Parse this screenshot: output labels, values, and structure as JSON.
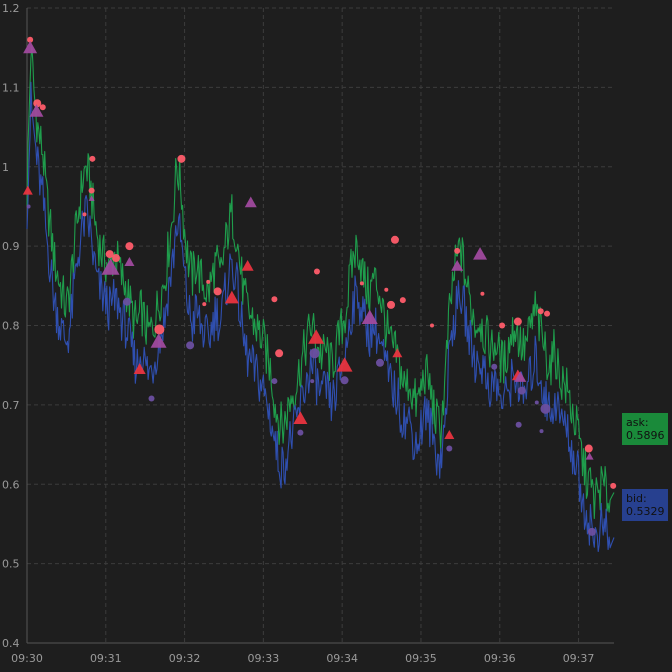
{
  "chart_data": {
    "type": "line",
    "title": "",
    "xlabel": "",
    "ylabel": "",
    "ylim": [
      0.4,
      1.2
    ],
    "xlim": [
      "09:30",
      "09:37:27"
    ],
    "grid": true,
    "legend": "none",
    "colors": {
      "background": "#1e1e1e",
      "grid": "#3c3c3c",
      "ask": "#1f9d4c",
      "bid": "#2f4fb0",
      "ask_badge": "#1a8a3a",
      "bid_badge": "#27408f",
      "sell_marker": "#ff5c6a",
      "buy_marker": "#6b4fa0",
      "triangle_red": "#e8343f",
      "triangle_purple": "#a04a9e"
    },
    "y_ticks": [
      "0.4",
      "0.5",
      "0.6",
      "0.7",
      "0.8",
      "0.9",
      "1",
      "1.1",
      "1.2"
    ],
    "x_ticks": [
      "09:30",
      "09:31",
      "09:32",
      "09:33",
      "09:34",
      "09:35",
      "09:36",
      "09:37"
    ],
    "series": [
      {
        "name": "ask",
        "color": "#1f9d4c",
        "x": [
          0,
          0.05,
          0.1,
          0.15,
          0.2,
          0.25,
          0.3,
          0.35,
          0.4,
          0.45,
          0.5,
          0.55,
          0.6,
          0.65,
          0.7,
          0.75,
          0.8,
          0.85,
          0.9,
          0.95,
          1,
          1.05,
          1.1,
          1.15,
          1.2,
          1.25,
          1.3,
          1.35,
          1.4,
          1.45,
          1.5,
          1.55,
          1.6,
          1.65,
          1.7,
          1.75,
          1.8,
          1.85,
          1.9,
          1.95,
          2,
          2.05,
          2.1,
          2.15,
          2.2,
          2.25,
          2.3,
          2.35,
          2.4,
          2.45,
          2.5,
          2.55,
          2.6,
          2.65,
          2.7,
          2.75,
          2.8,
          2.85,
          2.9,
          2.95,
          3,
          3.05,
          3.1,
          3.15,
          3.2,
          3.25,
          3.3,
          3.35,
          3.4,
          3.45,
          3.5,
          3.55,
          3.6,
          3.65,
          3.7,
          3.75,
          3.8,
          3.85,
          3.9,
          3.95,
          4,
          4.05,
          4.1,
          4.15,
          4.2,
          4.25,
          4.3,
          4.35,
          4.4,
          4.45,
          4.5,
          4.55,
          4.6,
          4.65,
          4.7,
          4.75,
          4.8,
          4.85,
          4.9,
          4.95,
          5,
          5.05,
          5.1,
          5.15,
          5.2,
          5.25,
          5.3,
          5.35,
          5.4,
          5.45,
          5.5,
          5.55,
          5.6,
          5.65,
          5.7,
          5.75,
          5.8,
          5.85,
          5.9,
          5.95,
          6,
          6.05,
          6.1,
          6.15,
          6.2,
          6.25,
          6.3,
          6.35,
          6.4,
          6.45,
          6.5,
          6.55,
          6.6,
          6.65,
          6.7,
          6.75,
          6.8,
          6.85,
          6.9,
          6.95,
          7,
          7.05,
          7.1,
          7.15,
          7.2,
          7.25,
          7.3,
          7.35,
          7.4,
          7.45
        ],
        "values": [
          0.97,
          1.15,
          1.08,
          1.04,
          1.02,
          0.96,
          0.92,
          0.88,
          0.86,
          0.84,
          0.82,
          0.85,
          0.9,
          0.94,
          0.98,
          1.0,
          0.98,
          0.94,
          0.91,
          0.89,
          0.88,
          0.87,
          0.89,
          0.88,
          0.86,
          0.85,
          0.83,
          0.81,
          0.8,
          0.82,
          0.8,
          0.79,
          0.8,
          0.82,
          0.84,
          0.86,
          0.9,
          0.94,
          1.0,
          0.98,
          0.92,
          0.88,
          0.86,
          0.88,
          0.86,
          0.85,
          0.84,
          0.86,
          0.88,
          0.86,
          0.89,
          0.92,
          0.94,
          0.92,
          0.88,
          0.84,
          0.82,
          0.81,
          0.8,
          0.79,
          0.78,
          0.76,
          0.74,
          0.7,
          0.68,
          0.67,
          0.69,
          0.71,
          0.72,
          0.74,
          0.76,
          0.78,
          0.8,
          0.79,
          0.77,
          0.76,
          0.77,
          0.75,
          0.76,
          0.78,
          0.8,
          0.82,
          0.86,
          0.89,
          0.9,
          0.87,
          0.85,
          0.84,
          0.86,
          0.85,
          0.83,
          0.8,
          0.78,
          0.77,
          0.76,
          0.74,
          0.72,
          0.73,
          0.71,
          0.7,
          0.72,
          0.74,
          0.73,
          0.7,
          0.68,
          0.67,
          0.72,
          0.8,
          0.85,
          0.88,
          0.9,
          0.87,
          0.84,
          0.82,
          0.8,
          0.81,
          0.79,
          0.78,
          0.77,
          0.78,
          0.76,
          0.75,
          0.77,
          0.79,
          0.8,
          0.78,
          0.77,
          0.78,
          0.8,
          0.82,
          0.8,
          0.78,
          0.76,
          0.75,
          0.77,
          0.74,
          0.73,
          0.72,
          0.7,
          0.68,
          0.66,
          0.63,
          0.61,
          0.6,
          0.58,
          0.59,
          0.6,
          0.59,
          0.58,
          0.5896
        ]
      },
      {
        "name": "bid",
        "color": "#2f4fb0",
        "x": [
          0,
          0.05,
          0.1,
          0.15,
          0.2,
          0.25,
          0.3,
          0.35,
          0.4,
          0.45,
          0.5,
          0.55,
          0.6,
          0.65,
          0.7,
          0.75,
          0.8,
          0.85,
          0.9,
          0.95,
          1,
          1.05,
          1.1,
          1.15,
          1.2,
          1.25,
          1.3,
          1.35,
          1.4,
          1.45,
          1.5,
          1.55,
          1.6,
          1.65,
          1.7,
          1.75,
          1.8,
          1.85,
          1.9,
          1.95,
          2,
          2.05,
          2.1,
          2.15,
          2.2,
          2.25,
          2.3,
          2.35,
          2.4,
          2.45,
          2.5,
          2.55,
          2.6,
          2.65,
          2.7,
          2.75,
          2.8,
          2.85,
          2.9,
          2.95,
          3,
          3.05,
          3.1,
          3.15,
          3.2,
          3.25,
          3.3,
          3.35,
          3.4,
          3.45,
          3.5,
          3.55,
          3.6,
          3.65,
          3.7,
          3.75,
          3.8,
          3.85,
          3.9,
          3.95,
          4,
          4.05,
          4.1,
          4.15,
          4.2,
          4.25,
          4.3,
          4.35,
          4.4,
          4.45,
          4.5,
          4.55,
          4.6,
          4.65,
          4.7,
          4.75,
          4.8,
          4.85,
          4.9,
          4.95,
          5,
          5.05,
          5.1,
          5.15,
          5.2,
          5.25,
          5.3,
          5.35,
          5.4,
          5.45,
          5.5,
          5.55,
          5.6,
          5.65,
          5.7,
          5.75,
          5.8,
          5.85,
          5.9,
          5.95,
          6,
          6.05,
          6.1,
          6.15,
          6.2,
          6.25,
          6.3,
          6.35,
          6.4,
          6.45,
          6.5,
          6.55,
          6.6,
          6.65,
          6.7,
          6.75,
          6.8,
          6.85,
          6.9,
          6.95,
          7,
          7.05,
          7.1,
          7.15,
          7.2,
          7.25,
          7.3,
          7.35,
          7.4,
          7.45
        ],
        "values": [
          0.95,
          1.08,
          1.03,
          0.99,
          0.96,
          0.91,
          0.87,
          0.83,
          0.81,
          0.79,
          0.78,
          0.8,
          0.85,
          0.89,
          0.92,
          0.94,
          0.92,
          0.88,
          0.85,
          0.84,
          0.83,
          0.82,
          0.83,
          0.83,
          0.81,
          0.8,
          0.78,
          0.76,
          0.75,
          0.77,
          0.75,
          0.74,
          0.75,
          0.77,
          0.79,
          0.81,
          0.85,
          0.88,
          0.93,
          0.91,
          0.86,
          0.82,
          0.8,
          0.82,
          0.8,
          0.79,
          0.78,
          0.8,
          0.82,
          0.8,
          0.83,
          0.86,
          0.88,
          0.86,
          0.82,
          0.78,
          0.76,
          0.75,
          0.74,
          0.73,
          0.72,
          0.7,
          0.68,
          0.65,
          0.63,
          0.62,
          0.64,
          0.66,
          0.67,
          0.69,
          0.71,
          0.73,
          0.75,
          0.74,
          0.72,
          0.71,
          0.72,
          0.7,
          0.71,
          0.73,
          0.75,
          0.77,
          0.81,
          0.83,
          0.84,
          0.82,
          0.8,
          0.79,
          0.8,
          0.79,
          0.77,
          0.75,
          0.73,
          0.72,
          0.71,
          0.69,
          0.68,
          0.68,
          0.66,
          0.65,
          0.67,
          0.69,
          0.68,
          0.66,
          0.64,
          0.63,
          0.67,
          0.75,
          0.8,
          0.82,
          0.84,
          0.82,
          0.79,
          0.77,
          0.75,
          0.76,
          0.74,
          0.73,
          0.72,
          0.73,
          0.71,
          0.7,
          0.72,
          0.73,
          0.74,
          0.72,
          0.71,
          0.72,
          0.74,
          0.76,
          0.74,
          0.72,
          0.7,
          0.69,
          0.71,
          0.69,
          0.68,
          0.67,
          0.65,
          0.63,
          0.61,
          0.58,
          0.56,
          0.55,
          0.53,
          0.54,
          0.55,
          0.54,
          0.52,
          0.5329
        ]
      }
    ],
    "markers": [
      {
        "shape": "circle",
        "color": "#ff5c6a",
        "x": 0.04,
        "y": 1.16,
        "size": 3
      },
      {
        "shape": "circle",
        "color": "#ff5c6a",
        "x": 0.13,
        "y": 1.08,
        "size": 4
      },
      {
        "shape": "circle",
        "color": "#ff5c6a",
        "x": 0.2,
        "y": 1.075,
        "size": 3
      },
      {
        "shape": "circle",
        "color": "#ff5c6a",
        "x": 0.73,
        "y": 0.94,
        "size": 2
      },
      {
        "shape": "circle",
        "color": "#ff5c6a",
        "x": 0.83,
        "y": 1.01,
        "size": 3
      },
      {
        "shape": "circle",
        "color": "#ff5c6a",
        "x": 0.82,
        "y": 0.97,
        "size": 3
      },
      {
        "shape": "circle",
        "color": "#ff5c6a",
        "x": 1.05,
        "y": 0.89,
        "size": 4
      },
      {
        "shape": "circle",
        "color": "#ff5c6a",
        "x": 1.13,
        "y": 0.885,
        "size": 4
      },
      {
        "shape": "circle",
        "color": "#ff5c6a",
        "x": 1.3,
        "y": 0.9,
        "size": 4
      },
      {
        "shape": "circle",
        "color": "#ff5c6a",
        "x": 1.68,
        "y": 0.795,
        "size": 5
      },
      {
        "shape": "circle",
        "color": "#ff5c6a",
        "x": 1.96,
        "y": 1.01,
        "size": 4
      },
      {
        "shape": "circle",
        "color": "#ff5c6a",
        "x": 2.3,
        "y": 0.855,
        "size": 2
      },
      {
        "shape": "circle",
        "color": "#ff5c6a",
        "x": 2.42,
        "y": 0.843,
        "size": 4
      },
      {
        "shape": "circle",
        "color": "#ff5c6a",
        "x": 2.25,
        "y": 0.827,
        "size": 2
      },
      {
        "shape": "circle",
        "color": "#ff5c6a",
        "x": 3.14,
        "y": 0.833,
        "size": 3
      },
      {
        "shape": "circle",
        "color": "#ff5c6a",
        "x": 3.2,
        "y": 0.765,
        "size": 4
      },
      {
        "shape": "circle",
        "color": "#ff5c6a",
        "x": 3.68,
        "y": 0.868,
        "size": 3
      },
      {
        "shape": "circle",
        "color": "#ff5c6a",
        "x": 4.25,
        "y": 0.853,
        "size": 2
      },
      {
        "shape": "circle",
        "color": "#ff5c6a",
        "x": 4.67,
        "y": 0.908,
        "size": 4
      },
      {
        "shape": "circle",
        "color": "#ff5c6a",
        "x": 4.62,
        "y": 0.826,
        "size": 4
      },
      {
        "shape": "circle",
        "color": "#ff5c6a",
        "x": 4.77,
        "y": 0.832,
        "size": 3
      },
      {
        "shape": "circle",
        "color": "#ff5c6a",
        "x": 4.56,
        "y": 0.845,
        "size": 2
      },
      {
        "shape": "circle",
        "color": "#ff5c6a",
        "x": 5.14,
        "y": 0.8,
        "size": 2
      },
      {
        "shape": "circle",
        "color": "#ff5c6a",
        "x": 5.46,
        "y": 0.894,
        "size": 3
      },
      {
        "shape": "circle",
        "color": "#ff5c6a",
        "x": 5.78,
        "y": 0.84,
        "size": 2
      },
      {
        "shape": "circle",
        "color": "#ff5c6a",
        "x": 6.03,
        "y": 0.8,
        "size": 3
      },
      {
        "shape": "circle",
        "color": "#ff5c6a",
        "x": 6.23,
        "y": 0.805,
        "size": 4
      },
      {
        "shape": "circle",
        "color": "#ff5c6a",
        "x": 6.52,
        "y": 0.818,
        "size": 3
      },
      {
        "shape": "circle",
        "color": "#ff5c6a",
        "x": 6.6,
        "y": 0.815,
        "size": 3
      },
      {
        "shape": "circle",
        "color": "#ff5c6a",
        "x": 7.13,
        "y": 0.645,
        "size": 4
      },
      {
        "shape": "circle",
        "color": "#ff5c6a",
        "x": 7.44,
        "y": 0.598,
        "size": 3
      },
      {
        "shape": "circle",
        "color": "#6b4fa0",
        "x": 0.02,
        "y": 0.95,
        "size": 2
      },
      {
        "shape": "circle",
        "color": "#6b4fa0",
        "x": 1.27,
        "y": 0.83,
        "size": 4
      },
      {
        "shape": "circle",
        "color": "#6b4fa0",
        "x": 1.58,
        "y": 0.708,
        "size": 3
      },
      {
        "shape": "circle",
        "color": "#6b4fa0",
        "x": 2.07,
        "y": 0.775,
        "size": 4
      },
      {
        "shape": "circle",
        "color": "#6b4fa0",
        "x": 3.14,
        "y": 0.73,
        "size": 3
      },
      {
        "shape": "circle",
        "color": "#6b4fa0",
        "x": 3.47,
        "y": 0.665,
        "size": 3
      },
      {
        "shape": "circle",
        "color": "#6b4fa0",
        "x": 3.65,
        "y": 0.765,
        "size": 5
      },
      {
        "shape": "circle",
        "color": "#6b4fa0",
        "x": 3.62,
        "y": 0.73,
        "size": 2
      },
      {
        "shape": "circle",
        "color": "#6b4fa0",
        "x": 4.03,
        "y": 0.731,
        "size": 4
      },
      {
        "shape": "circle",
        "color": "#6b4fa0",
        "x": 4.48,
        "y": 0.753,
        "size": 4
      },
      {
        "shape": "circle",
        "color": "#6b4fa0",
        "x": 5.36,
        "y": 0.645,
        "size": 3
      },
      {
        "shape": "circle",
        "color": "#6b4fa0",
        "x": 5.93,
        "y": 0.748,
        "size": 3
      },
      {
        "shape": "circle",
        "color": "#6b4fa0",
        "x": 6.28,
        "y": 0.718,
        "size": 4
      },
      {
        "shape": "circle",
        "color": "#6b4fa0",
        "x": 6.24,
        "y": 0.675,
        "size": 3
      },
      {
        "shape": "circle",
        "color": "#6b4fa0",
        "x": 6.47,
        "y": 0.703,
        "size": 2
      },
      {
        "shape": "circle",
        "color": "#6b4fa0",
        "x": 6.58,
        "y": 0.695,
        "size": 5
      },
      {
        "shape": "circle",
        "color": "#6b4fa0",
        "x": 6.53,
        "y": 0.667,
        "size": 2
      },
      {
        "shape": "circle",
        "color": "#6b4fa0",
        "x": 7.17,
        "y": 0.54,
        "size": 4
      },
      {
        "shape": "triangle",
        "color": "#e8343f",
        "x": 0.01,
        "y": 0.97,
        "size": 5
      },
      {
        "shape": "triangle",
        "color": "#e8343f",
        "x": 1.43,
        "y": 0.745,
        "size": 6
      },
      {
        "shape": "triangle",
        "color": "#e8343f",
        "x": 2.6,
        "y": 0.835,
        "size": 7
      },
      {
        "shape": "triangle",
        "color": "#e8343f",
        "x": 2.8,
        "y": 0.875,
        "size": 6
      },
      {
        "shape": "triangle",
        "color": "#e8343f",
        "x": 3.47,
        "y": 0.683,
        "size": 7
      },
      {
        "shape": "triangle",
        "color": "#e8343f",
        "x": 3.67,
        "y": 0.785,
        "size": 8
      },
      {
        "shape": "triangle",
        "color": "#e8343f",
        "x": 4.03,
        "y": 0.75,
        "size": 8
      },
      {
        "shape": "triangle",
        "color": "#e8343f",
        "x": 4.7,
        "y": 0.765,
        "size": 5
      },
      {
        "shape": "triangle",
        "color": "#e8343f",
        "x": 5.36,
        "y": 0.662,
        "size": 5
      },
      {
        "shape": "triangle",
        "color": "#e8343f",
        "x": 6.23,
        "y": 0.737,
        "size": 6
      },
      {
        "shape": "triangle",
        "color": "#a04a9e",
        "x": 0.04,
        "y": 1.15,
        "size": 7
      },
      {
        "shape": "triangle",
        "color": "#a04a9e",
        "x": 0.12,
        "y": 1.07,
        "size": 7
      },
      {
        "shape": "triangle",
        "color": "#a04a9e",
        "x": 0.82,
        "y": 0.96,
        "size": 3
      },
      {
        "shape": "triangle",
        "color": "#a04a9e",
        "x": 1.06,
        "y": 0.873,
        "size": 9
      },
      {
        "shape": "triangle",
        "color": "#a04a9e",
        "x": 1.3,
        "y": 0.88,
        "size": 5
      },
      {
        "shape": "triangle",
        "color": "#a04a9e",
        "x": 1.67,
        "y": 0.78,
        "size": 8
      },
      {
        "shape": "triangle",
        "color": "#a04a9e",
        "x": 2.84,
        "y": 0.955,
        "size": 6
      },
      {
        "shape": "triangle",
        "color": "#a04a9e",
        "x": 4.35,
        "y": 0.81,
        "size": 8
      },
      {
        "shape": "triangle",
        "color": "#a04a9e",
        "x": 5.46,
        "y": 0.875,
        "size": 6
      },
      {
        "shape": "triangle",
        "color": "#a04a9e",
        "x": 5.75,
        "y": 0.89,
        "size": 7
      },
      {
        "shape": "triangle",
        "color": "#a04a9e",
        "x": 6.26,
        "y": 0.735,
        "size": 6
      },
      {
        "shape": "triangle",
        "color": "#a04a9e",
        "x": 7.14,
        "y": 0.635,
        "size": 4
      }
    ],
    "badges": [
      {
        "label": "ask:",
        "value": "0.5896",
        "series": "ask"
      },
      {
        "label": "bid:",
        "value": "0.5329",
        "series": "bid"
      }
    ]
  }
}
